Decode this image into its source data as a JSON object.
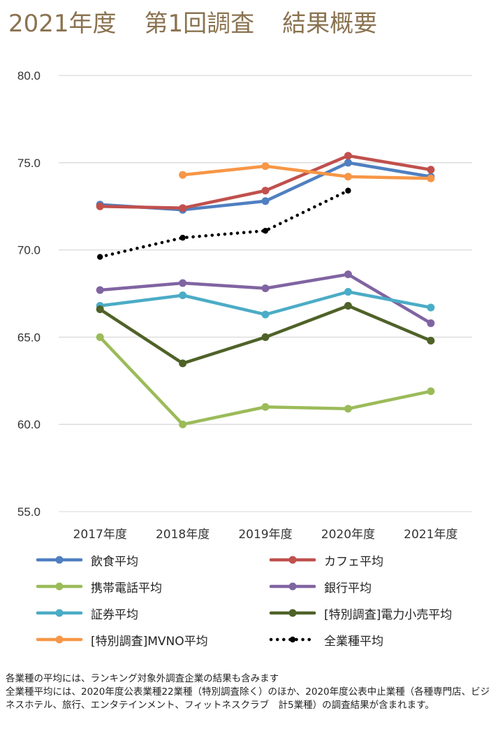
{
  "title": {
    "parts": [
      "2021年度",
      "第1回調査",
      "結果概要"
    ]
  },
  "chart_data": {
    "type": "line",
    "categories": [
      "2017年度",
      "2018年度",
      "2019年度",
      "2020年度",
      "2021年度"
    ],
    "ylim": [
      55,
      80
    ],
    "yticks": [
      "80.0",
      "75.0",
      "70.0",
      "65.0",
      "60.0",
      "55.0"
    ],
    "ytick_values": [
      80,
      75,
      70,
      65,
      60,
      55
    ],
    "grid": true,
    "legend_position": "bottom",
    "series": [
      {
        "name": "飲食平均",
        "color": "#4f7fc0",
        "dashed": false,
        "values": [
          72.6,
          72.3,
          72.8,
          75.0,
          74.2
        ]
      },
      {
        "name": "カフェ平均",
        "color": "#c0504d",
        "dashed": false,
        "values": [
          72.5,
          72.4,
          73.4,
          75.4,
          74.6
        ]
      },
      {
        "name": "携帯電話平均",
        "color": "#9bbb59",
        "dashed": false,
        "values": [
          65.0,
          60.0,
          61.0,
          60.9,
          61.9
        ]
      },
      {
        "name": "銀行平均",
        "color": "#8064a2",
        "dashed": false,
        "values": [
          67.7,
          68.1,
          67.8,
          68.6,
          65.8
        ]
      },
      {
        "name": "証券平均",
        "color": "#4bacc6",
        "dashed": false,
        "values": [
          66.8,
          67.4,
          66.3,
          67.6,
          66.7
        ]
      },
      {
        "name": "[特別調査]電力小売平均",
        "color": "#4f6228",
        "dashed": false,
        "values": [
          66.6,
          63.5,
          65.0,
          66.8,
          64.8
        ]
      },
      {
        "name": "[特別調査]MVNO平均",
        "color": "#f79646",
        "dashed": false,
        "values": [
          null,
          74.3,
          74.8,
          74.2,
          74.1
        ]
      },
      {
        "name": "全業種平均",
        "color": "#000000",
        "dashed": true,
        "values": [
          69.6,
          70.7,
          71.1,
          73.4,
          null
        ]
      }
    ]
  },
  "notes": [
    "各業種の平均には、ランキング対象外調査企業の結果も含みます",
    "全業種平均には、2020年度公表業種22業種（特別調査除く）のほか、2020年度公表中止業種（各種専門店、ビジネスホテル、旅行、エンタテインメント、フィットネスクラブ　計5業種）の調査結果が含まれます。"
  ]
}
